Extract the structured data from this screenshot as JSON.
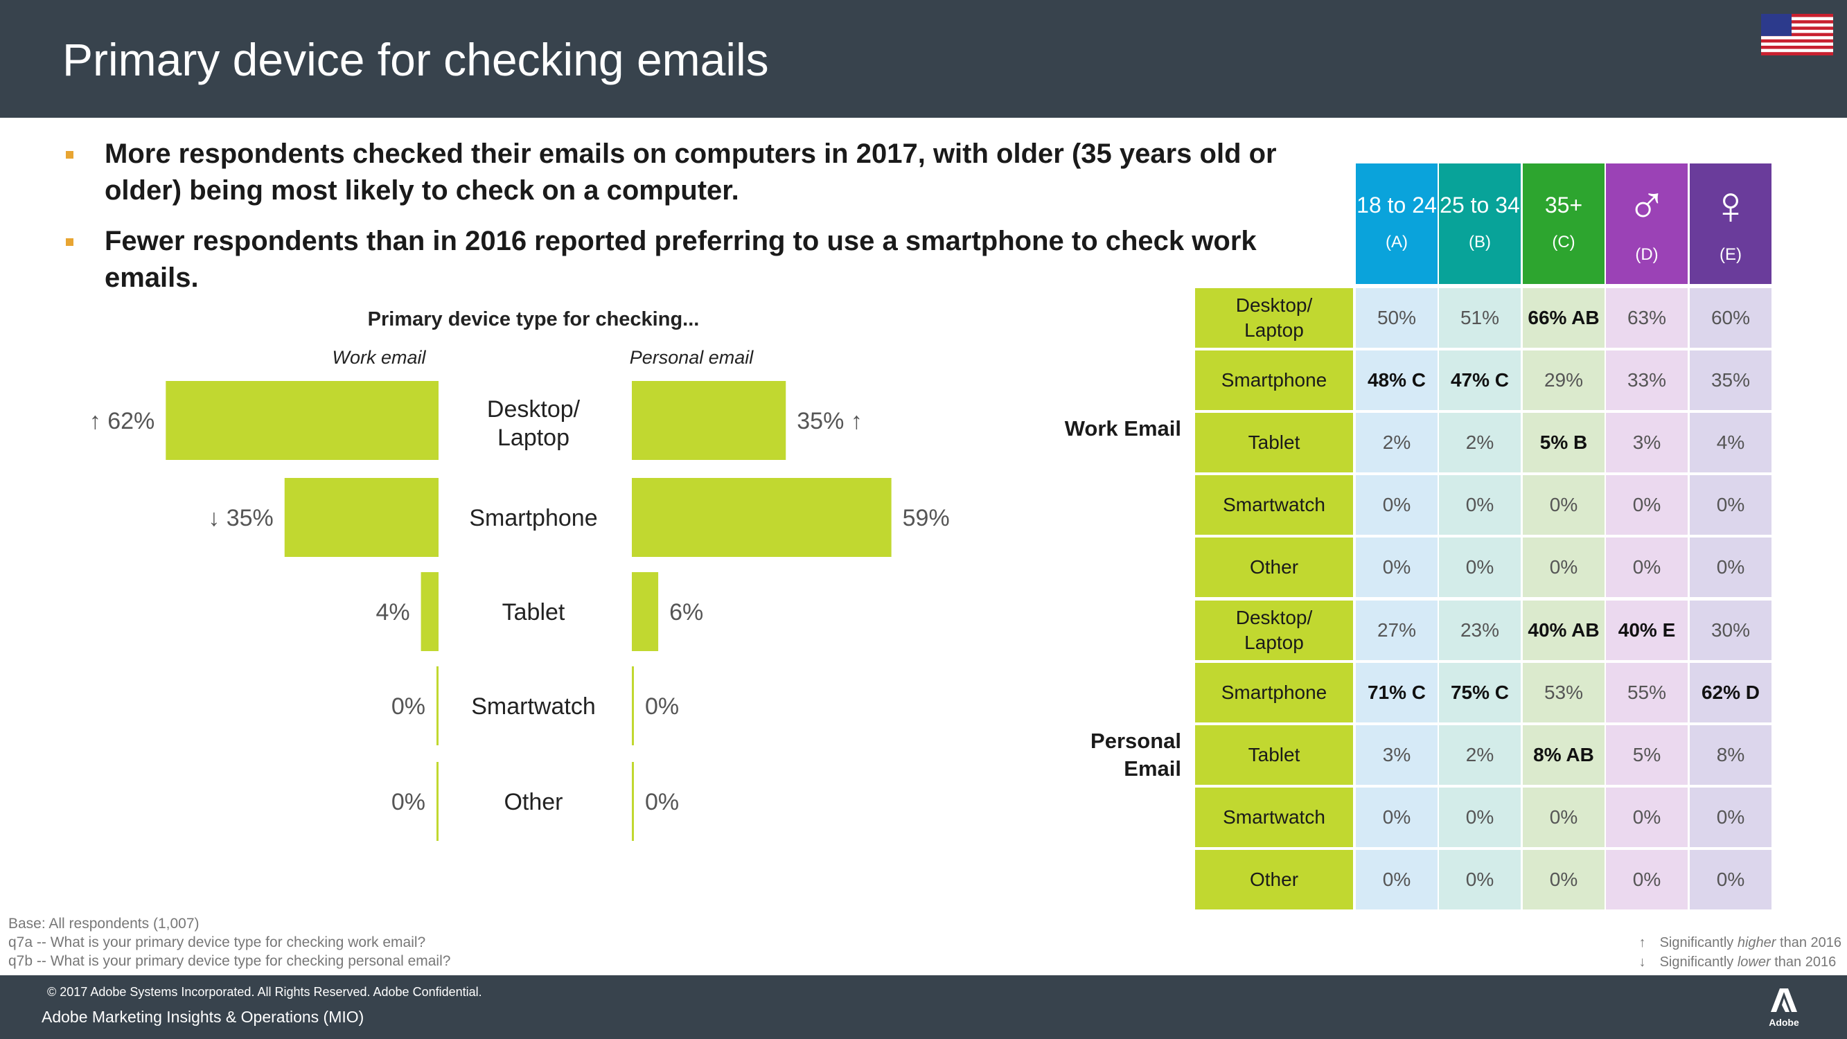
{
  "header": {
    "title": "Primary device for checking emails",
    "flag": "us-flag-icon"
  },
  "bullets": [
    "More respondents checked their emails on computers in 2017, with older (35 years old or older) being most likely to check on a computer.",
    "Fewer respondents than in 2016 reported preferring to use a smartphone to check work emails."
  ],
  "chart_data": {
    "type": "bar",
    "title": "Primary device type for checking...",
    "categories": [
      "Desktop/ Laptop",
      "Smartphone",
      "Tablet",
      "Smartwatch",
      "Other"
    ],
    "series": [
      {
        "name": "Work email",
        "values": [
          62,
          35,
          4,
          0,
          0
        ],
        "labels": [
          "62%",
          "35%",
          "4%",
          "0%",
          "0%"
        ],
        "change": [
          "up",
          "down",
          "",
          "",
          ""
        ]
      },
      {
        "name": "Personal email",
        "values": [
          35,
          59,
          6,
          0,
          0
        ],
        "labels": [
          "35%",
          "59%",
          "6%",
          "0%",
          "0%"
        ],
        "change": [
          "up",
          "",
          "",
          "",
          ""
        ]
      }
    ],
    "bar_color": "#c1d830",
    "up_arrow": "↑",
    "down_arrow": "↓"
  },
  "table": {
    "columns": [
      {
        "label": "18 to 24",
        "code": "(A)",
        "color": "#0aa3db"
      },
      {
        "label": "25 to 34",
        "code": "(B)",
        "color": "#08a399"
      },
      {
        "label": "35+",
        "code": "(C)",
        "color": "#2da52f"
      },
      {
        "label": "♂",
        "code": "(D)",
        "color": "#9b42b6"
      },
      {
        "label": "♀",
        "code": "(E)",
        "color": "#6a3c9b"
      }
    ],
    "column_tints": [
      "#d6eaf7",
      "#d3ece9",
      "#dbeacd",
      "#ebd9ef",
      "#dcd6ec"
    ],
    "groups": [
      {
        "label": "Work Email",
        "rows": [
          {
            "label": "Desktop/ Laptop",
            "cells": [
              [
                "50%",
                false
              ],
              [
                "51%",
                false
              ],
              [
                "66% AB",
                true
              ],
              [
                "63%",
                false
              ],
              [
                "60%",
                false
              ]
            ]
          },
          {
            "label": "Smartphone",
            "cells": [
              [
                "48% C",
                true
              ],
              [
                "47% C",
                true
              ],
              [
                "29%",
                false
              ],
              [
                "33%",
                false
              ],
              [
                "35%",
                false
              ]
            ]
          },
          {
            "label": "Tablet",
            "cells": [
              [
                "2%",
                false
              ],
              [
                "2%",
                false
              ],
              [
                "5% B",
                true
              ],
              [
                "3%",
                false
              ],
              [
                "4%",
                false
              ]
            ]
          },
          {
            "label": "Smartwatch",
            "cells": [
              [
                "0%",
                false
              ],
              [
                "0%",
                false
              ],
              [
                "0%",
                false
              ],
              [
                "0%",
                false
              ],
              [
                "0%",
                false
              ]
            ]
          },
          {
            "label": "Other",
            "cells": [
              [
                "0%",
                false
              ],
              [
                "0%",
                false
              ],
              [
                "0%",
                false
              ],
              [
                "0%",
                false
              ],
              [
                "0%",
                false
              ]
            ]
          }
        ]
      },
      {
        "label": "Personal Email",
        "rows": [
          {
            "label": "Desktop/ Laptop",
            "cells": [
              [
                "27%",
                false
              ],
              [
                "23%",
                false
              ],
              [
                "40% AB",
                true
              ],
              [
                "40% E",
                true
              ],
              [
                "30%",
                false
              ]
            ]
          },
          {
            "label": "Smartphone",
            "cells": [
              [
                "71% C",
                true
              ],
              [
                "75% C",
                true
              ],
              [
                "53%",
                false
              ],
              [
                "55%",
                false
              ],
              [
                "62% D",
                true
              ]
            ]
          },
          {
            "label": "Tablet",
            "cells": [
              [
                "3%",
                false
              ],
              [
                "2%",
                false
              ],
              [
                "8% AB",
                true
              ],
              [
                "5%",
                false
              ],
              [
                "8%",
                false
              ]
            ]
          },
          {
            "label": "Smartwatch",
            "cells": [
              [
                "0%",
                false
              ],
              [
                "0%",
                false
              ],
              [
                "0%",
                false
              ],
              [
                "0%",
                false
              ],
              [
                "0%",
                false
              ]
            ]
          },
          {
            "label": "Other",
            "cells": [
              [
                "0%",
                false
              ],
              [
                "0%",
                false
              ],
              [
                "0%",
                false
              ],
              [
                "0%",
                false
              ],
              [
                "0%",
                false
              ]
            ]
          }
        ]
      }
    ]
  },
  "footnotes": {
    "base": "Base: All respondents (1,007)",
    "q7a": "q7a -- What is your primary device type for checking work email?",
    "q7b": "q7b -- What is your primary device type for checking personal email?"
  },
  "legend": {
    "up_arrow": "↑",
    "up_pre": "Significantly ",
    "up_em": "higher",
    "up_post": " than 2016",
    "down_arrow": "↓",
    "down_pre": "Significantly ",
    "down_em": "lower",
    "down_post": " than 2016"
  },
  "footer": {
    "copyright": "© 2017 Adobe Systems Incorporated.  All Rights Reserved.  Adobe Confidential.",
    "org": "Adobe Marketing Insights & Operations (MIO)",
    "logo_text": "Adobe"
  }
}
